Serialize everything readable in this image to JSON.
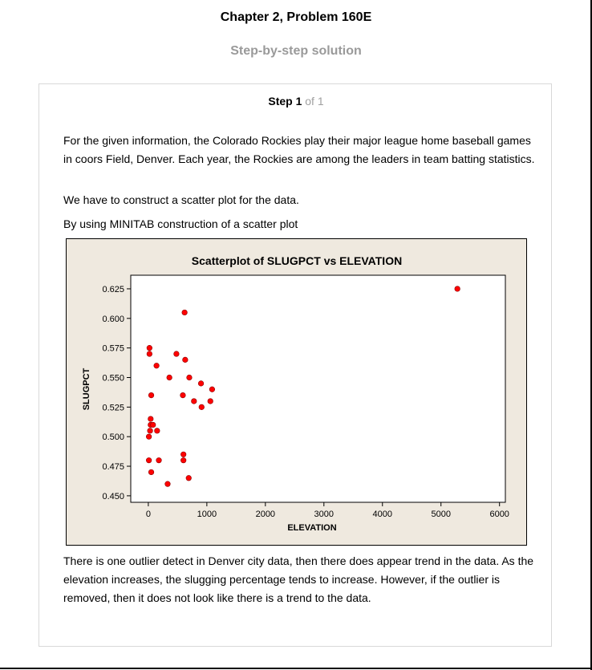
{
  "header": {
    "title": "Chapter 2, Problem 160E",
    "subtitle": "Step-by-step solution"
  },
  "step": {
    "label": "Step 1",
    "of": "of 1"
  },
  "content": {
    "p1": "For the given information, the Colorado Rockies play their major league home baseball games in coors Field, Denver. Each year, the Rockies are among the leaders in team batting statistics.",
    "p2": "We have to construct a scatter plot for the data.",
    "p3": "By using MINITAB construction of a scatter plot",
    "p4": "There is one outlier detect in Denver city data, then there does appear trend in the data. As the elevation increases, the slugging percentage tends to increase. However, if the outlier is removed, then it does not look like there is a trend to the data."
  },
  "chart_data": {
    "type": "scatter",
    "title": "Scatterplot of SLUGPCT vs ELEVATION",
    "xlabel": "ELEVATION",
    "ylabel": "SLUGPCT",
    "xlim": [
      -300,
      6100
    ],
    "ylim": [
      0.4445,
      0.6365
    ],
    "xticks": [
      0,
      1000,
      2000,
      3000,
      4000,
      5000,
      6000
    ],
    "yticks": [
      0.45,
      0.475,
      0.5,
      0.525,
      0.55,
      0.575,
      0.6,
      0.625
    ],
    "ytick_labels": [
      "0.450",
      "0.475",
      "0.500",
      "0.525",
      "0.550",
      "0.575",
      "0.600",
      "0.625"
    ],
    "grid": false,
    "point_color": "#ff0000",
    "background": "#efe9df",
    "points": [
      {
        "x": 5280,
        "y": 0.625
      },
      {
        "x": 620,
        "y": 0.605
      },
      {
        "x": 20,
        "y": 0.575
      },
      {
        "x": 20,
        "y": 0.57
      },
      {
        "x": 480,
        "y": 0.57
      },
      {
        "x": 630,
        "y": 0.565
      },
      {
        "x": 140,
        "y": 0.56
      },
      {
        "x": 360,
        "y": 0.55
      },
      {
        "x": 700,
        "y": 0.55
      },
      {
        "x": 900,
        "y": 0.545
      },
      {
        "x": 1090,
        "y": 0.54
      },
      {
        "x": 50,
        "y": 0.535
      },
      {
        "x": 590,
        "y": 0.535
      },
      {
        "x": 780,
        "y": 0.53
      },
      {
        "x": 1060,
        "y": 0.53
      },
      {
        "x": 910,
        "y": 0.525
      },
      {
        "x": 40,
        "y": 0.515
      },
      {
        "x": 40,
        "y": 0.51
      },
      {
        "x": 80,
        "y": 0.51
      },
      {
        "x": 30,
        "y": 0.505
      },
      {
        "x": 150,
        "y": 0.505
      },
      {
        "x": 10,
        "y": 0.5
      },
      {
        "x": 600,
        "y": 0.485
      },
      {
        "x": 10,
        "y": 0.48
      },
      {
        "x": 180,
        "y": 0.48
      },
      {
        "x": 600,
        "y": 0.48
      },
      {
        "x": 50,
        "y": 0.47
      },
      {
        "x": 690,
        "y": 0.465
      },
      {
        "x": 330,
        "y": 0.46
      }
    ]
  }
}
